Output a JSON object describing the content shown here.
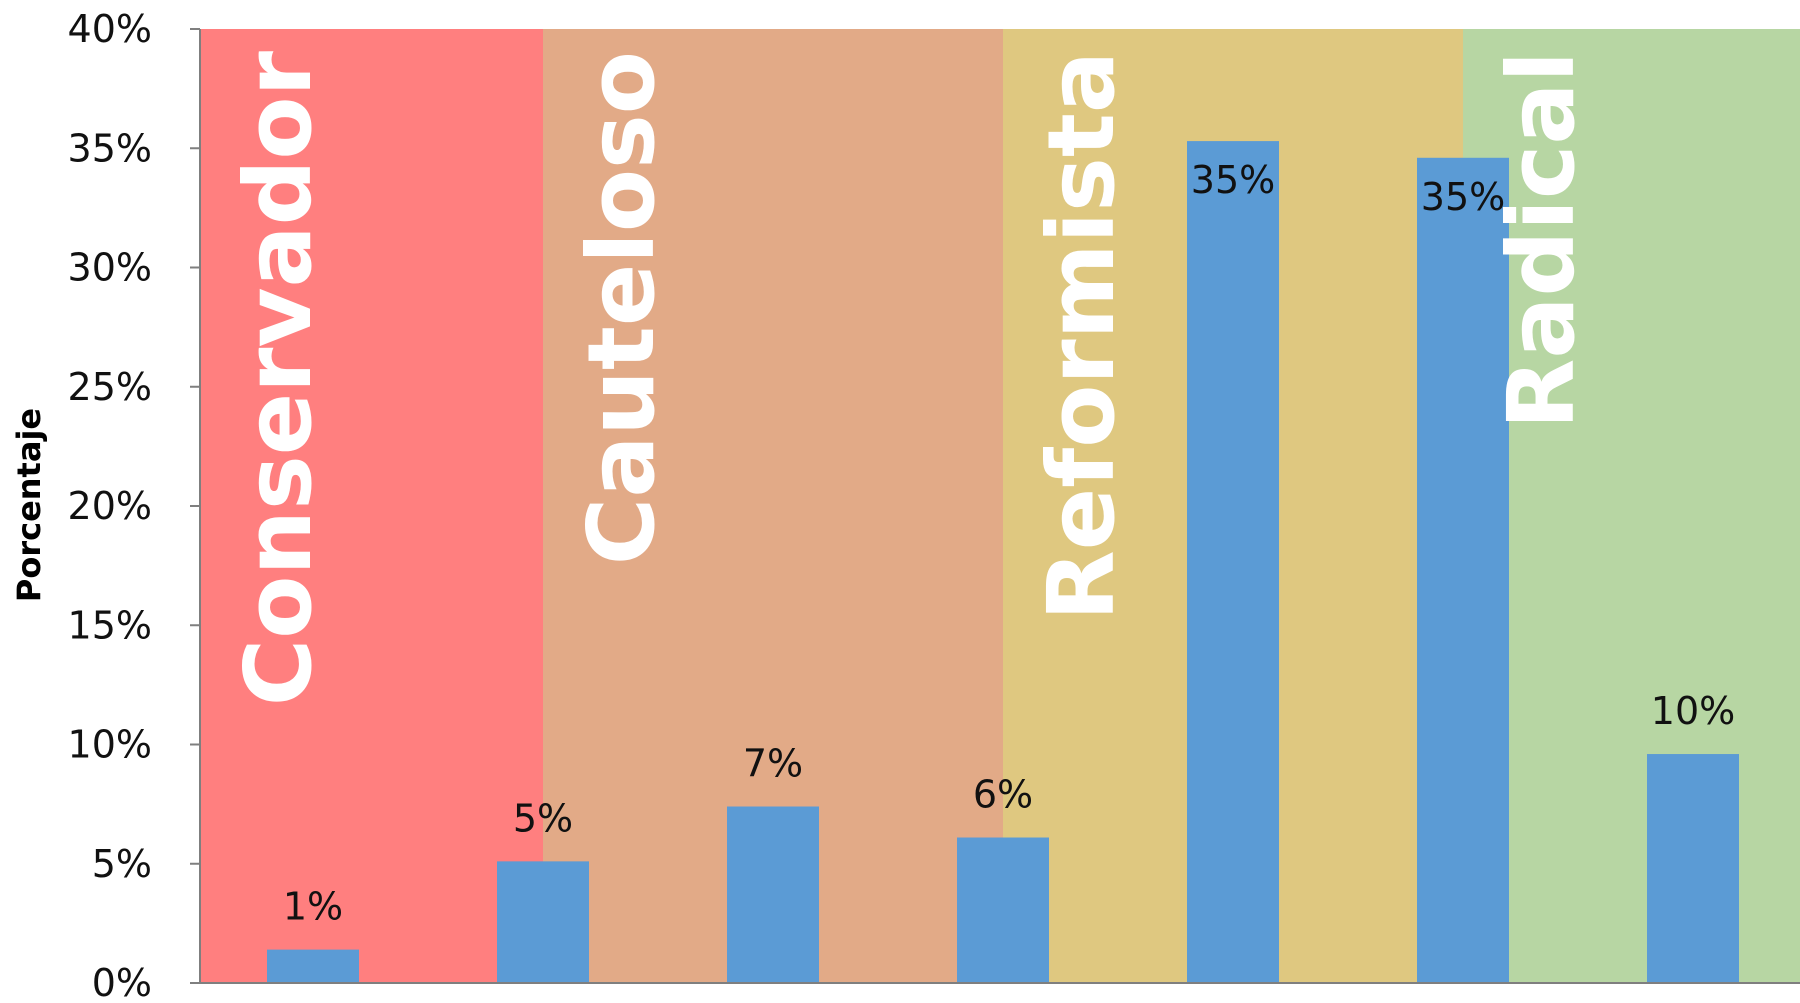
{
  "chart_data": {
    "type": "bar",
    "ylabel": "Porcentaje",
    "xlabel": "",
    "ylim": [
      0,
      0.4
    ],
    "y_ticks": [
      "0%",
      "5%",
      "10%",
      "15%",
      "20%",
      "25%",
      "30%",
      "35%",
      "40%"
    ],
    "values": [
      0.014,
      0.051,
      0.074,
      0.061,
      0.353,
      0.346,
      0.096
    ],
    "data_labels": [
      "1%",
      "5%",
      "7%",
      "6%",
      "35%",
      "35%",
      "10%"
    ],
    "bar_color": "#5b9bd5",
    "zones": [
      {
        "label": "Conservador",
        "color": "#ff7f7f",
        "label_color": "#ffffff",
        "from_bar": -0.5,
        "to_bar": 1.0
      },
      {
        "label": "Cauteloso",
        "color": "#e2aa87",
        "label_color": "#ffffff",
        "from_bar": 1.0,
        "to_bar": 3.0
      },
      {
        "label": "Reformista",
        "color": "#dfc880",
        "label_color": "#ffffff",
        "from_bar": 3.0,
        "to_bar": 5.0
      },
      {
        "label": "Radical",
        "color": "#b7d6a3",
        "label_color": "#ffffff",
        "from_bar": 5.0,
        "to_bar": 6.5
      }
    ]
  }
}
